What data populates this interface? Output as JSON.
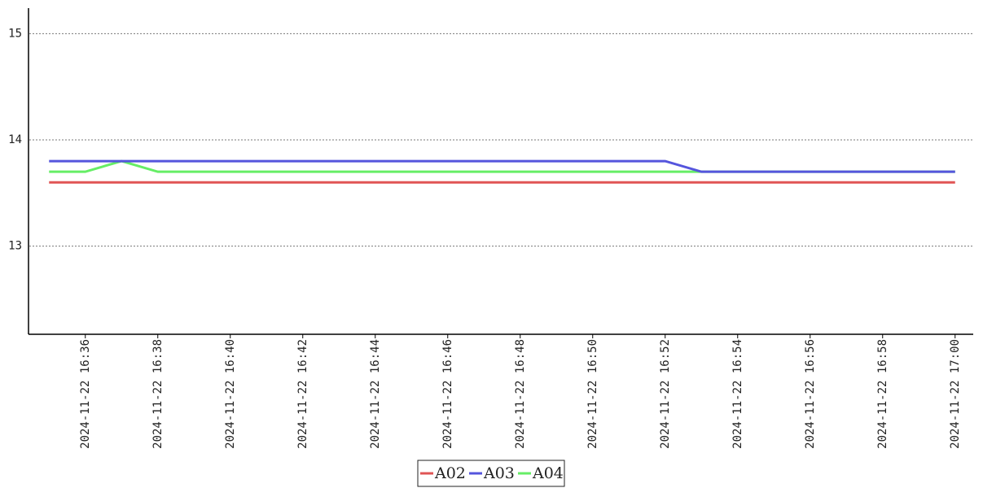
{
  "chart_data": {
    "type": "line",
    "categories": [
      null,
      "2024-11-22 16:36",
      null,
      "2024-11-22 16:38",
      null,
      "2024-11-22 16:40",
      null,
      "2024-11-22 16:42",
      null,
      "2024-11-22 16:44",
      null,
      "2024-11-22 16:46",
      null,
      "2024-11-22 16:48",
      null,
      "2024-11-22 16:50",
      null,
      "2024-11-22 16:52",
      null,
      "2024-11-22 16:54",
      null,
      "2024-11-22 16:56",
      null,
      "2024-11-22 16:58",
      null,
      "2024-11-22 17:00"
    ],
    "series": [
      {
        "name": "A02",
        "color": "#e05555",
        "values": [
          13.6,
          13.6,
          13.6,
          13.6,
          13.6,
          13.6,
          13.6,
          13.6,
          13.6,
          13.6,
          13.6,
          13.6,
          13.6,
          13.6,
          13.6,
          13.6,
          13.6,
          13.6,
          13.6,
          13.6,
          13.6,
          13.6,
          13.6,
          13.6,
          13.6,
          13.6
        ]
      },
      {
        "name": "A03",
        "color": "#5555dd",
        "values": [
          13.8,
          13.8,
          13.8,
          13.8,
          13.8,
          13.8,
          13.8,
          13.8,
          13.8,
          13.8,
          13.8,
          13.8,
          13.8,
          13.8,
          13.8,
          13.8,
          13.8,
          13.8,
          13.7,
          13.7,
          13.7,
          13.7,
          13.7,
          13.7,
          13.7,
          13.7
        ]
      },
      {
        "name": "A04",
        "color": "#66ee66",
        "values": [
          13.7,
          13.7,
          13.8,
          13.7,
          13.7,
          13.7,
          13.7,
          13.7,
          13.7,
          13.7,
          13.7,
          13.7,
          13.7,
          13.7,
          13.7,
          13.7,
          13.7,
          13.7,
          13.7,
          13.7,
          13.7,
          13.7,
          13.7,
          13.7,
          13.7,
          13.7
        ]
      }
    ],
    "ylim": [
      12.17,
      15.24
    ],
    "yticks": [
      13,
      14,
      15
    ],
    "grid": true
  }
}
